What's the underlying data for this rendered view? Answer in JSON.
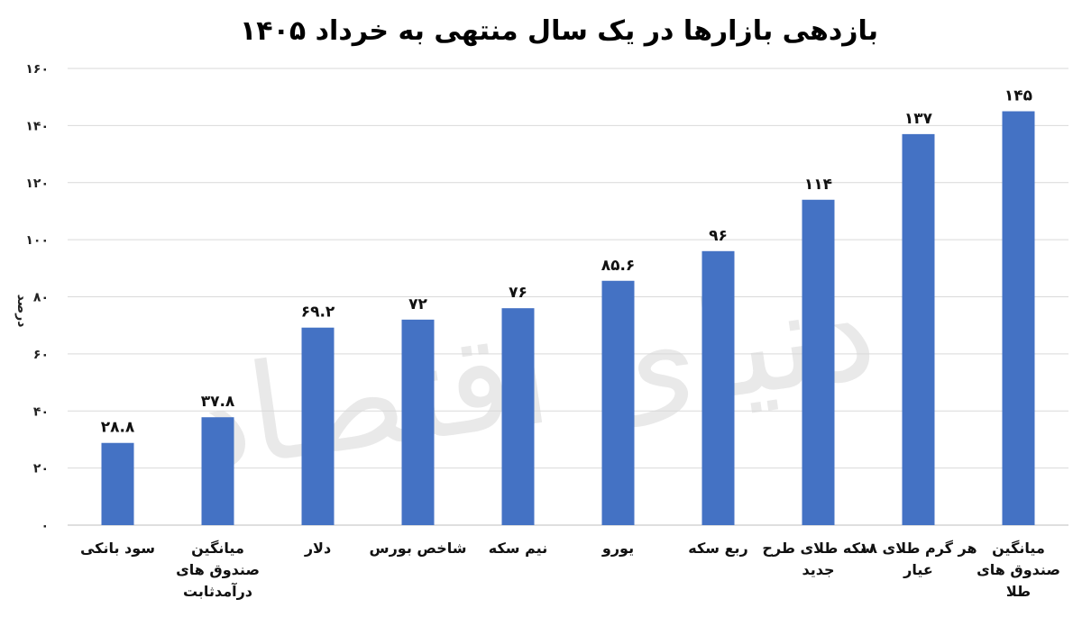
{
  "chart_data": {
    "type": "bar",
    "title": "بازدهی بازارها در یک سال منتهی به خرداد ۱۴۰۵",
    "xlabel": "",
    "ylabel": "درصد",
    "ylim": [
      0,
      160
    ],
    "yticks": [
      0,
      20,
      40,
      60,
      80,
      100,
      120,
      140,
      160
    ],
    "ytick_labels": [
      "۰",
      "۲۰",
      "۴۰",
      "۶۰",
      "۸۰",
      "۱۰۰",
      "۱۲۰",
      "۱۴۰",
      "۱۶۰"
    ],
    "grid": true,
    "legend": "none",
    "bar_color": "#4472c4",
    "categories": [
      "سود بانکی",
      "میانگین صندوق های درآمدثابت",
      "دلار",
      "شاخص بورس",
      "نیم سکه",
      "یورو",
      "ربع سکه",
      "سکه طلای طرح جدید",
      "هر گرم طلای ۱۸ عیار",
      "میانگین صندوق های طلا"
    ],
    "category_lines": [
      [
        "سود بانکی"
      ],
      [
        "میانگین",
        "صندوق های",
        "درآمدثابت"
      ],
      [
        "دلار"
      ],
      [
        "شاخص بورس"
      ],
      [
        "نیم سکه"
      ],
      [
        "یورو"
      ],
      [
        "ربع سکه"
      ],
      [
        "سکه طلای طرح",
        "جدید"
      ],
      [
        "هر گرم طلای ۱۸",
        "عیار"
      ],
      [
        "میانگین",
        "صندوق های",
        "طلا"
      ]
    ],
    "values": [
      28.8,
      37.8,
      69.2,
      72,
      76,
      85.6,
      96,
      114,
      137,
      145
    ],
    "value_labels": [
      "۲۸.۸",
      "۳۷.۸",
      "۶۹.۲",
      "۷۲",
      "۷۶",
      "۸۵.۶",
      "۹۶",
      "۱۱۴",
      "۱۳۷",
      "۱۴۵"
    ],
    "watermark": "دنیای اقتصاد"
  }
}
